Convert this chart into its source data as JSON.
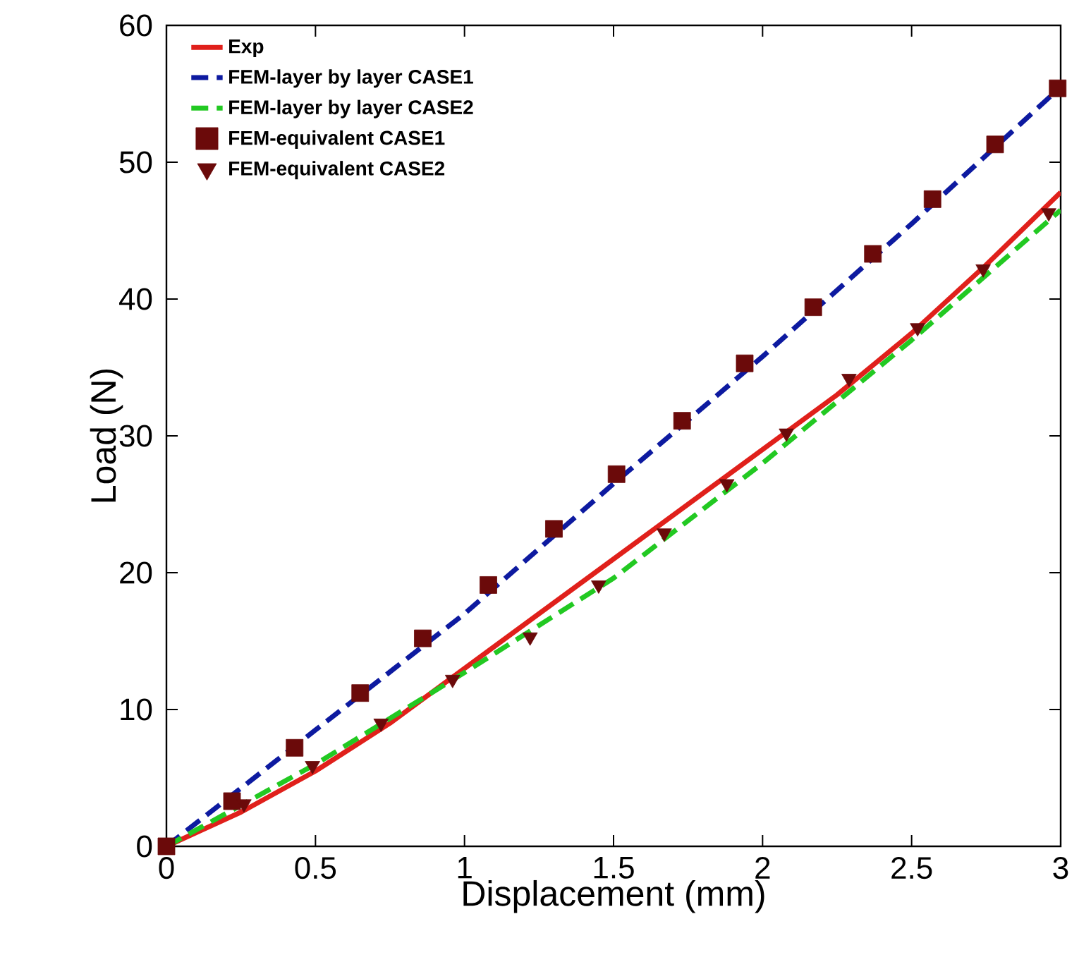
{
  "chart_data": {
    "type": "line",
    "xlabel": "Displacement (mm)",
    "ylabel": "Load (N)",
    "xlim": [
      0,
      3
    ],
    "ylim": [
      0,
      60
    ],
    "xticks": [
      0,
      0.5,
      1,
      1.5,
      2,
      2.5,
      3
    ],
    "yticks": [
      0,
      10,
      20,
      30,
      40,
      50,
      60
    ],
    "legend": "top left",
    "grid": false,
    "series": [
      {
        "name": "Exp",
        "type": "line",
        "color": "#e0201b",
        "line_style": "solid",
        "x": [
          0,
          0.25,
          0.5,
          0.75,
          1,
          1.25,
          1.5,
          1.75,
          2,
          2.25,
          2.5,
          2.75,
          3
        ],
        "values": [
          0,
          2.5,
          5.5,
          9,
          13,
          17,
          21,
          25,
          29,
          33,
          37.5,
          42.5,
          47.8
        ]
      },
      {
        "name": "FEM-layer by layer  CASE1",
        "type": "line",
        "color": "#0d1aa0",
        "line_style": "dashed",
        "x": [
          0,
          0.5,
          1,
          1.5,
          2,
          2.5,
          3
        ],
        "values": [
          0,
          8.5,
          17,
          26.5,
          35.8,
          45.5,
          55.5
        ]
      },
      {
        "name": "FEM-layer by layer  CASE2",
        "type": "line",
        "color": "#22c922",
        "line_style": "dashed",
        "x": [
          0,
          0.5,
          1,
          1.5,
          2,
          2.5,
          3
        ],
        "values": [
          0,
          6,
          12.7,
          19.6,
          28,
          37,
          46.5
        ]
      },
      {
        "name": "FEM-equivalent  CASE1",
        "type": "scatter",
        "color": "#6b0a0a",
        "marker": "square",
        "x": [
          0,
          0.22,
          0.43,
          0.65,
          0.86,
          1.08,
          1.3,
          1.51,
          1.73,
          1.94,
          2.17,
          2.37,
          2.57,
          2.78,
          2.99
        ],
        "values": [
          0,
          3.3,
          7.2,
          11.2,
          15.2,
          19.1,
          23.2,
          27.2,
          31.1,
          35.3,
          39.4,
          43.3,
          47.3,
          51.3,
          55.4
        ]
      },
      {
        "name": "FEM-equivalent  CASE2",
        "type": "scatter",
        "color": "#6b0a0a",
        "marker": "triangle",
        "x": [
          0.26,
          0.49,
          0.72,
          0.96,
          1.22,
          1.45,
          1.67,
          1.88,
          2.08,
          2.29,
          2.52,
          2.74,
          2.96
        ],
        "values": [
          3.1,
          5.9,
          9,
          12.2,
          15.3,
          19.1,
          22.9,
          26.5,
          30.2,
          34.2,
          37.9,
          42.2,
          46.3
        ]
      }
    ]
  }
}
